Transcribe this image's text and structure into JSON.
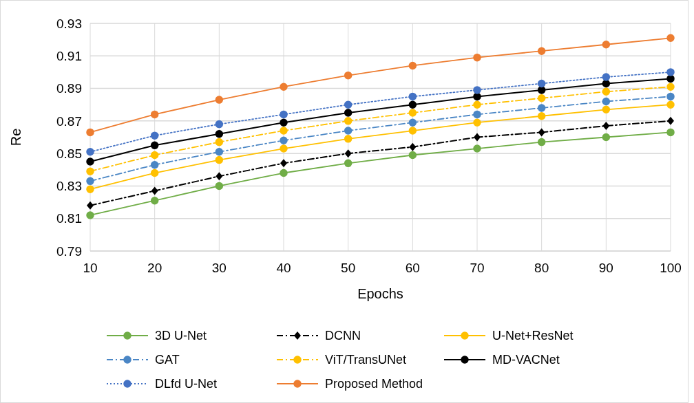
{
  "chart_data": {
    "type": "line",
    "xlabel": "Epochs",
    "ylabel": "Re",
    "x": [
      10,
      20,
      30,
      40,
      50,
      60,
      70,
      80,
      90,
      100
    ],
    "xlim": [
      10,
      100
    ],
    "xticks": [
      10,
      20,
      30,
      40,
      50,
      60,
      70,
      80,
      90,
      100
    ],
    "ylim": [
      0.79,
      0.93
    ],
    "yticks": [
      0.79,
      0.81,
      0.83,
      0.85,
      0.87,
      0.89,
      0.91,
      0.93
    ],
    "grid": true,
    "legend": "bottom",
    "marker": "circle",
    "series": [
      {
        "name": "3D U-Net",
        "color": "#70ad47",
        "line_style": "solid",
        "values": [
          0.812,
          0.821,
          0.83,
          0.838,
          0.844,
          0.849,
          0.853,
          0.857,
          0.86,
          0.863
        ]
      },
      {
        "name": "DCNN",
        "color": "#000000",
        "line_style": "dashed",
        "marker": "diamond",
        "values": [
          0.818,
          0.827,
          0.836,
          0.844,
          0.85,
          0.854,
          0.86,
          0.863,
          0.867,
          0.87
        ]
      },
      {
        "name": "U-Net+ResNet",
        "color": "#ffc000",
        "line_style": "solid",
        "values": [
          0.828,
          0.838,
          0.846,
          0.853,
          0.859,
          0.864,
          0.869,
          0.873,
          0.877,
          0.88
        ]
      },
      {
        "name": "GAT",
        "color": "#4a86c5",
        "line_style": "dashed",
        "values": [
          0.833,
          0.843,
          0.851,
          0.858,
          0.864,
          0.869,
          0.874,
          0.878,
          0.882,
          0.885
        ]
      },
      {
        "name": "ViT/TransUNet",
        "color": "#ffc000",
        "line_style": "dashed",
        "values": [
          0.839,
          0.849,
          0.857,
          0.864,
          0.87,
          0.875,
          0.88,
          0.884,
          0.888,
          0.891
        ]
      },
      {
        "name": "MD-VACNet",
        "color": "#000000",
        "line_style": "solid",
        "values": [
          0.845,
          0.855,
          0.862,
          0.869,
          0.875,
          0.88,
          0.885,
          0.889,
          0.893,
          0.896
        ]
      },
      {
        "name": "DLfd U-Net",
        "color": "#4472c4",
        "line_style": "dotted",
        "values": [
          0.851,
          0.861,
          0.868,
          0.874,
          0.88,
          0.885,
          0.889,
          0.893,
          0.897,
          0.9
        ]
      },
      {
        "name": "Proposed Method",
        "color": "#ed7d31",
        "line_style": "solid",
        "values": [
          0.863,
          0.874,
          0.883,
          0.891,
          0.898,
          0.904,
          0.909,
          0.913,
          0.917,
          0.921
        ]
      }
    ]
  }
}
